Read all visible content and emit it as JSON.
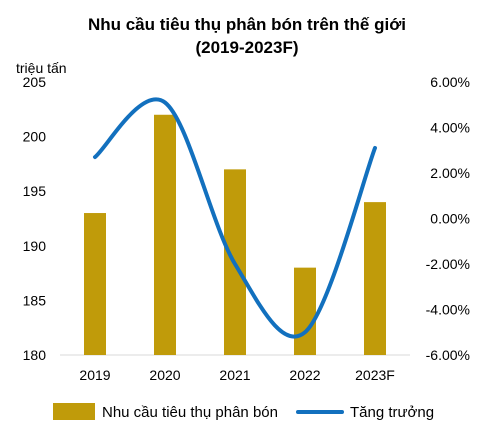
{
  "chart_data": {
    "type": "bar+line",
    "title": "Nhu cầu tiêu thụ phân bón trên thế giới",
    "subtitle": "(2019-2023F)",
    "ylabel": "triệu tấn",
    "categories": [
      "2019",
      "2020",
      "2021",
      "2022",
      "2023F"
    ],
    "series": [
      {
        "name": "Nhu cầu tiêu thụ phân bón",
        "type": "bar",
        "axis": "left",
        "color": "#C09B0A",
        "values": [
          193,
          202,
          197,
          188,
          194
        ]
      },
      {
        "name": "Tăng trưởng",
        "type": "line",
        "axis": "right",
        "color": "#1270BE",
        "values": [
          0.027,
          0.051,
          -0.02,
          -0.05,
          0.031
        ]
      }
    ],
    "y_left": {
      "min": 180,
      "max": 205,
      "ticks": [
        "180",
        "185",
        "190",
        "195",
        "200",
        "205"
      ]
    },
    "y_right": {
      "min": -0.06,
      "max": 0.06,
      "ticks": [
        "-6.00%",
        "-4.00%",
        "-2.00%",
        "0.00%",
        "2.00%",
        "4.00%",
        "6.00%"
      ]
    },
    "grid": false,
    "legend": "bottom"
  }
}
